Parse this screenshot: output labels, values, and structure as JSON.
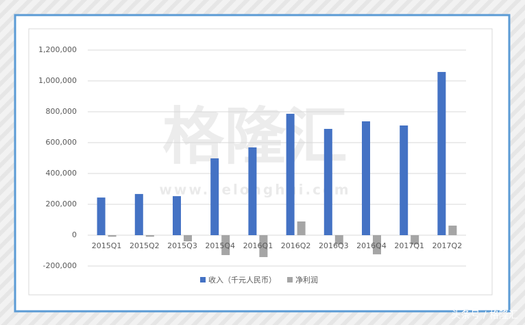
{
  "chart_data": {
    "type": "bar",
    "categories": [
      "2015Q1",
      "2015Q2",
      "2015Q3",
      "2015Q4",
      "2016Q1",
      "2016Q2",
      "2016Q3",
      "2016Q4",
      "2017Q1",
      "2017Q2"
    ],
    "series": [
      {
        "name": "收入（千元人民币）",
        "color": "#4472c4",
        "values": [
          244000,
          267000,
          253000,
          498000,
          569000,
          787000,
          689000,
          738000,
          711000,
          1058000
        ]
      },
      {
        "name": "净利润",
        "color": "#a5a5a5",
        "values": [
          -10000,
          -10000,
          -40000,
          -129000,
          -142000,
          89000,
          -60000,
          -124000,
          -60000,
          62000
        ]
      }
    ],
    "ylim": [
      -200000,
      1200000
    ],
    "yticks": [
      {
        "value": -200000,
        "label": "-200,000"
      },
      0,
      {
        "value": 200000,
        "label": "200,000"
      },
      {
        "value": 400000,
        "label": "400,000"
      },
      {
        "value": 600000,
        "label": "600,000"
      },
      {
        "value": 800000,
        "label": "800,000"
      },
      {
        "value": 1000000,
        "label": "1,000,000"
      },
      {
        "value": 1200000,
        "label": "1,200,000"
      }
    ],
    "grid": true,
    "legend": "bottom"
  },
  "watermark": "格隆汇",
  "watermark_url": "www.gelonghui.com",
  "source_mark": "头条号 / 格隆汇"
}
